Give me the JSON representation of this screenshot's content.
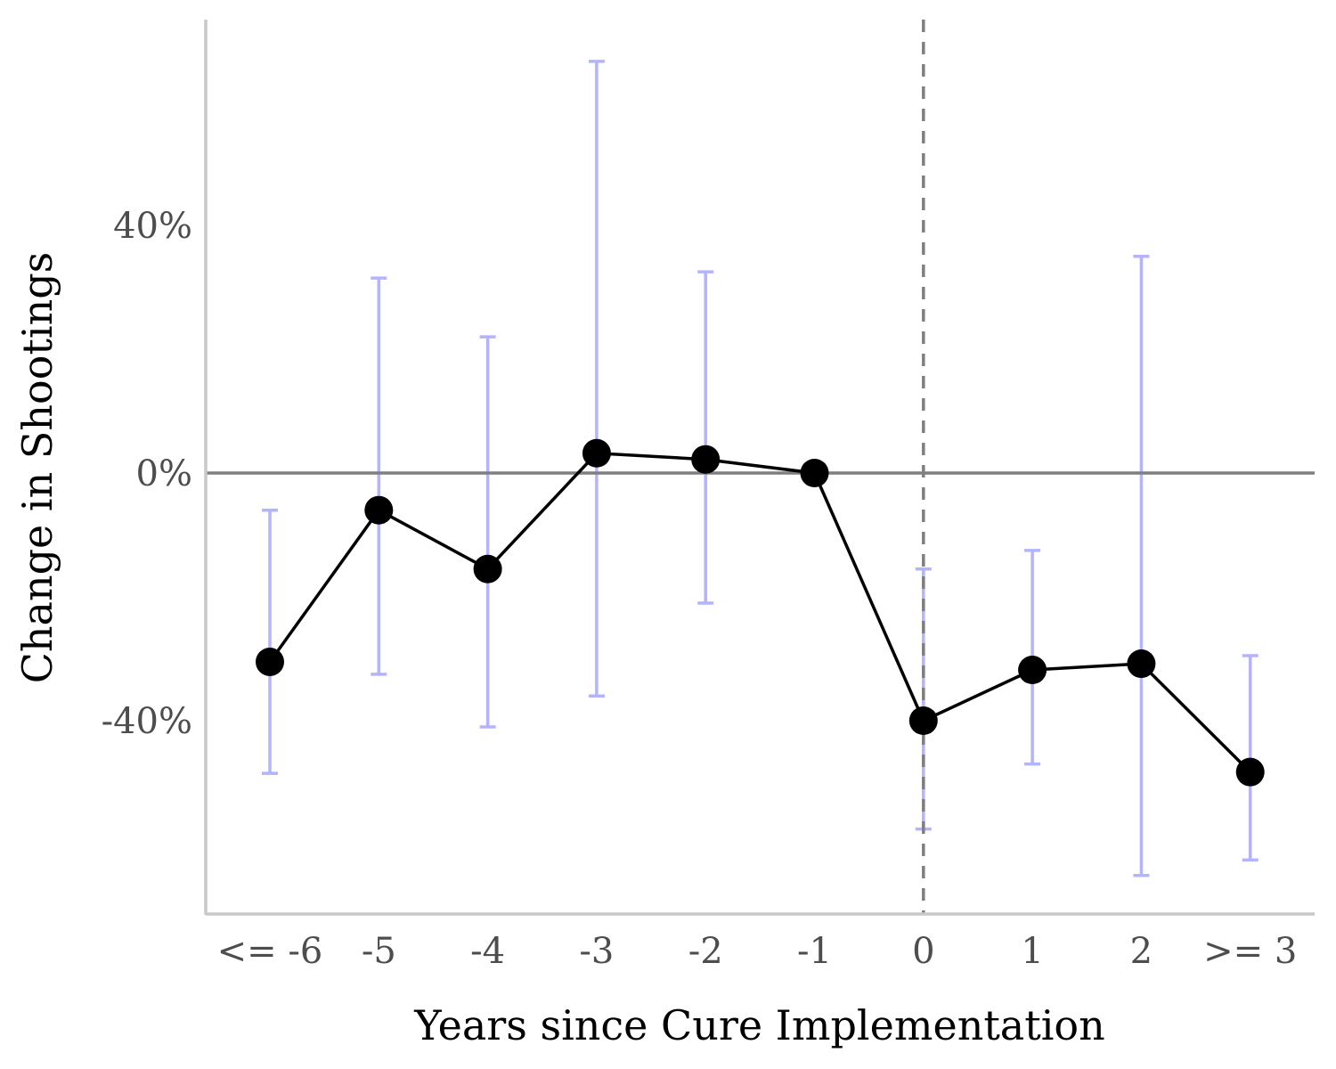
{
  "chart_data": {
    "type": "line",
    "title": "",
    "xlabel": "Years since Cure Implementation",
    "ylabel": "Change in Shootings",
    "categories": [
      "<= -6",
      "-5",
      "-4",
      "-3",
      "-2",
      "-1",
      "0",
      "1",
      "2",
      ">= 3"
    ],
    "series": [
      {
        "values": [
          -30.5,
          -6.0,
          -15.5,
          3.2,
          2.2,
          0.0,
          -40.0,
          -31.8,
          -30.8,
          -48.3
        ],
        "ci_lower": [
          -48.5,
          -32.5,
          -41.0,
          -36.0,
          -21.0,
          null,
          -57.5,
          -47.0,
          -65.0,
          -62.5
        ],
        "ci_upper": [
          -6.0,
          31.5,
          22.0,
          66.5,
          32.5,
          null,
          -15.5,
          -12.5,
          35.0,
          -29.5
        ]
      }
    ],
    "yticks": [
      -40,
      0,
      40
    ],
    "ytick_labels": [
      "-40%",
      "0%",
      "40%"
    ],
    "ylim": [
      -71,
      73
    ],
    "reference_line_y": 0,
    "vertical_dashed_line_at": "0",
    "colors": {
      "line": "#000000",
      "points": "#000000",
      "error_bars": "#b3b3ff",
      "reference_line": "#7f7f7f",
      "axis": "#c8c8c8"
    },
    "grid": false,
    "legend": "none"
  }
}
